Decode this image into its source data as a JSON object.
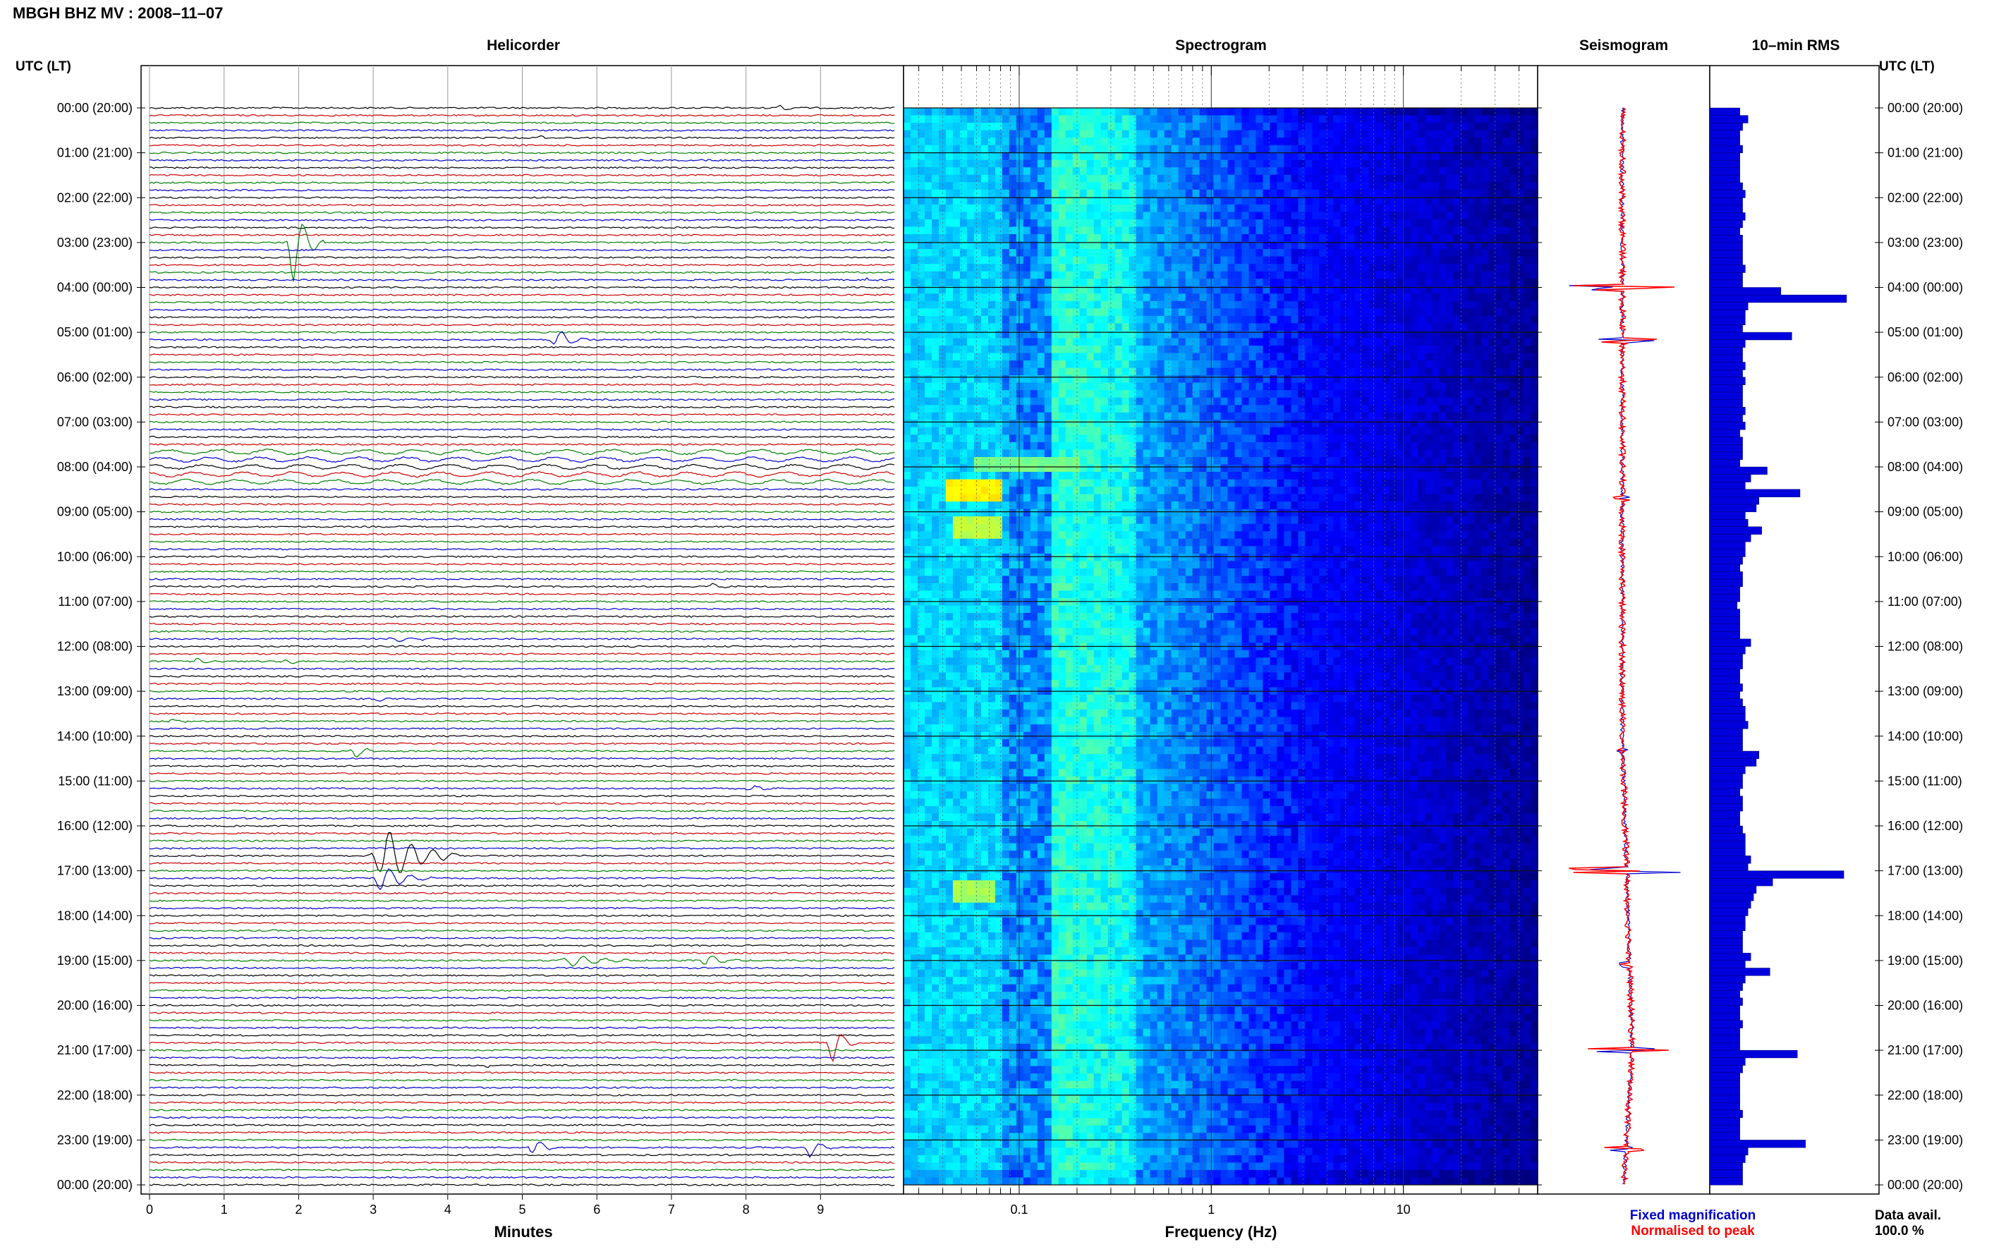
{
  "page": {
    "title": "MBGH BHZ MV : 2008–11–07",
    "left_axis_label": "UTC (LT)",
    "right_axis_label": "UTC (LT)",
    "data_avail_label": "Data avail.",
    "data_avail_value": "100.0 %"
  },
  "chart_data": [
    {
      "type": "line",
      "panel": "helicorder",
      "title": "Helicorder",
      "xlabel": "Minutes",
      "x_ticks": [
        "0",
        "1",
        "2",
        "3",
        "4",
        "5",
        "6",
        "7",
        "8",
        "9"
      ],
      "xlim": [
        0,
        10
      ],
      "trace_count": 145,
      "trace_colors": [
        "#000000",
        "#cc0000",
        "#008000",
        "#0000cc"
      ],
      "hour_labels": [
        "00:00 (20:00)",
        "01:00 (21:00)",
        "02:00 (22:00)",
        "03:00 (23:00)",
        "04:00 (00:00)",
        "05:00 (01:00)",
        "06:00 (02:00)",
        "07:00 (03:00)",
        "08:00 (04:00)",
        "09:00 (05:00)",
        "10:00 (06:00)",
        "11:00 (07:00)",
        "12:00 (08:00)",
        "13:00 (09:00)",
        "14:00 (10:00)",
        "15:00 (11:00)",
        "16:00 (12:00)",
        "17:00 (13:00)",
        "18:00 (14:00)",
        "19:00 (15:00)",
        "20:00 (16:00)",
        "21:00 (17:00)",
        "22:00 (18:00)",
        "23:00 (19:00)",
        "00:00 (20:00)"
      ],
      "events": [
        {
          "hour": 0.05,
          "minute": 8.4,
          "amp": 0.5,
          "dur": 0.4
        },
        {
          "hour": 0.6,
          "minute": 5.2,
          "amp": 0.4,
          "dur": 0.2
        },
        {
          "hour": 3.0,
          "minute": 1.85,
          "amp": 6.0,
          "dur": 0.5
        },
        {
          "hour": 3.9,
          "minute": 9.6,
          "amp": 0.4,
          "dur": 0.2
        },
        {
          "hour": 5.1,
          "minute": 5.4,
          "amp": 1.6,
          "dur": 0.5
        },
        {
          "hour": 10.6,
          "minute": 7.5,
          "amp": 0.5,
          "dur": 0.4
        },
        {
          "hour": 11.8,
          "minute": 3.2,
          "amp": 0.4,
          "dur": 1.0
        },
        {
          "hour": 12.3,
          "minute": 0.6,
          "amp": 0.5,
          "dur": 0.4
        },
        {
          "hour": 12.4,
          "minute": 1.8,
          "amp": 0.4,
          "dur": 0.4
        },
        {
          "hour": 13.2,
          "minute": 3.0,
          "amp": 0.5,
          "dur": 0.3
        },
        {
          "hour": 13.6,
          "minute": 0.2,
          "amp": 0.4,
          "dur": 0.4
        },
        {
          "hour": 14.3,
          "minute": 2.7,
          "amp": 1.0,
          "dur": 0.4
        },
        {
          "hour": 15.2,
          "minute": 8.0,
          "amp": 0.4,
          "dur": 0.6
        },
        {
          "hour": 16.7,
          "minute": 3.0,
          "amp": 4.0,
          "dur": 1.2
        },
        {
          "hour": 17.1,
          "minute": 3.0,
          "amp": 2.0,
          "dur": 0.8
        },
        {
          "hour": 19.0,
          "minute": 5.5,
          "amp": 0.8,
          "dur": 1.2
        },
        {
          "hour": 19.0,
          "minute": 7.4,
          "amp": 1.0,
          "dur": 0.5
        },
        {
          "hour": 20.8,
          "minute": 9.1,
          "amp": 3.0,
          "dur": 0.4
        },
        {
          "hour": 21.3,
          "minute": 4.5,
          "amp": 0.3,
          "dur": 0.2
        },
        {
          "hour": 23.1,
          "minute": 5.1,
          "amp": 1.5,
          "dur": 0.4
        },
        {
          "hour": 23.1,
          "minute": 8.8,
          "amp": 1.5,
          "dur": 0.4
        }
      ]
    },
    {
      "type": "heatmap",
      "panel": "spectrogram",
      "title": "Spectrogram",
      "xlabel": "Frequency (Hz)",
      "x_scale": "log",
      "xlim": [
        0.025,
        50
      ],
      "x_ticks": [
        "0.1",
        "1",
        "10"
      ],
      "colormap": [
        "#00007f",
        "#0000ff",
        "#007fff",
        "#00ffff",
        "#7fff7f",
        "#ffff00",
        "#ff7f00"
      ],
      "hot_spots": [
        {
          "hour_start": 8.3,
          "hour_end": 8.8,
          "f_low": 0.04,
          "f_high": 0.08,
          "level": 0.85
        },
        {
          "hour_start": 9.2,
          "hour_end": 9.6,
          "f_low": 0.045,
          "f_high": 0.08,
          "level": 0.75
        },
        {
          "hour_start": 17.4,
          "hour_end": 17.8,
          "f_low": 0.045,
          "f_high": 0.075,
          "level": 0.72
        },
        {
          "hour_start": 7.9,
          "hour_end": 8.1,
          "f_low": 0.06,
          "f_high": 0.2,
          "level": 0.65
        }
      ]
    },
    {
      "type": "line",
      "panel": "seismogram",
      "title": "Seismogram",
      "legend": [
        "Fixed magnification",
        "Normalised to peak"
      ],
      "legend_colors": [
        "#0000cc",
        "#ff0000"
      ],
      "spikes": [
        {
          "hour": 4.0,
          "amp": 0.8
        },
        {
          "hour": 5.2,
          "amp": 0.45
        },
        {
          "hour": 8.7,
          "amp": 0.1
        },
        {
          "hour": 14.3,
          "amp": 0.1
        },
        {
          "hour": 17.0,
          "amp": 0.9
        },
        {
          "hour": 19.1,
          "amp": 0.2
        },
        {
          "hour": 21.0,
          "amp": 0.55
        },
        {
          "hour": 23.2,
          "amp": 0.3
        }
      ]
    },
    {
      "type": "bar",
      "panel": "rms",
      "title": "10–min RMS",
      "orientation": "horizontal",
      "bar_color": "#0000dd",
      "values": [
        0.22,
        0.28,
        0.24,
        0.22,
        0.22,
        0.24,
        0.22,
        0.22,
        0.22,
        0.22,
        0.24,
        0.26,
        0.24,
        0.24,
        0.26,
        0.24,
        0.22,
        0.24,
        0.24,
        0.24,
        0.24,
        0.26,
        0.24,
        0.24,
        0.52,
        1.0,
        0.28,
        0.26,
        0.26,
        0.24,
        0.6,
        0.26,
        0.24,
        0.24,
        0.26,
        0.24,
        0.26,
        0.24,
        0.24,
        0.24,
        0.26,
        0.24,
        0.26,
        0.22,
        0.24,
        0.24,
        0.24,
        0.22,
        0.42,
        0.3,
        0.26,
        0.66,
        0.36,
        0.34,
        0.26,
        0.28,
        0.38,
        0.3,
        0.26,
        0.26,
        0.24,
        0.22,
        0.24,
        0.24,
        0.22,
        0.22,
        0.2,
        0.22,
        0.22,
        0.22,
        0.22,
        0.3,
        0.26,
        0.24,
        0.24,
        0.22,
        0.22,
        0.24,
        0.22,
        0.24,
        0.26,
        0.26,
        0.28,
        0.24,
        0.24,
        0.24,
        0.36,
        0.34,
        0.26,
        0.24,
        0.24,
        0.22,
        0.24,
        0.24,
        0.22,
        0.22,
        0.24,
        0.26,
        0.26,
        0.26,
        0.3,
        0.28,
        0.98,
        0.46,
        0.34,
        0.32,
        0.3,
        0.28,
        0.26,
        0.26,
        0.24,
        0.24,
        0.24,
        0.3,
        0.26,
        0.44,
        0.26,
        0.24,
        0.22,
        0.24,
        0.22,
        0.22,
        0.24,
        0.22,
        0.22,
        0.22,
        0.64,
        0.26,
        0.24,
        0.22,
        0.22,
        0.22,
        0.22,
        0.22,
        0.24,
        0.22,
        0.22,
        0.22,
        0.7,
        0.28,
        0.26,
        0.24,
        0.24,
        0.24
      ]
    }
  ]
}
